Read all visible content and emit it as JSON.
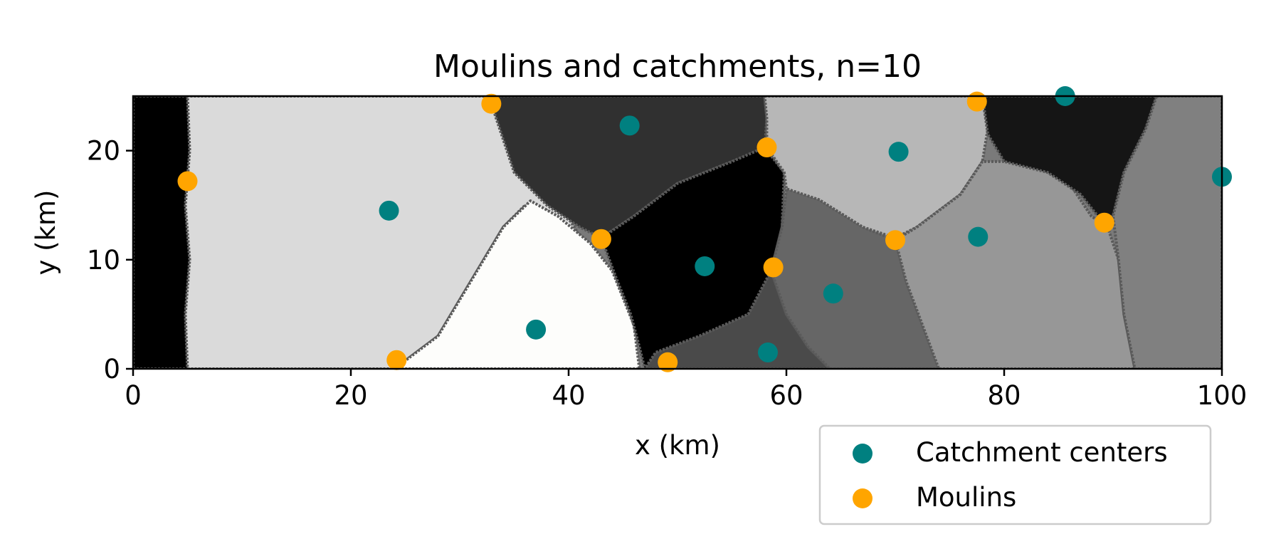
{
  "chart_data": {
    "type": "scatter",
    "title": "Moulins and catchments, n=10",
    "xlabel": "x (km)",
    "ylabel": "y (km)",
    "xlim": [
      0,
      100
    ],
    "ylim": [
      0,
      25
    ],
    "xticks": [
      0,
      20,
      40,
      60,
      80,
      100
    ],
    "yticks": [
      0,
      10,
      20
    ],
    "xtick_labels": [
      "0",
      "20",
      "40",
      "60",
      "80",
      "100"
    ],
    "ytick_labels": [
      "0",
      "10",
      "20"
    ],
    "grid": false,
    "legend_placement": "below-right",
    "background": "grayscale catchment regions",
    "series": [
      {
        "name": "Catchment centers",
        "color": "#008080",
        "points": [
          {
            "x": 23.5,
            "y": 14.5
          },
          {
            "x": 37.0,
            "y": 3.6
          },
          {
            "x": 45.6,
            "y": 22.3
          },
          {
            "x": 52.5,
            "y": 9.4
          },
          {
            "x": 58.3,
            "y": 1.5
          },
          {
            "x": 64.3,
            "y": 6.9
          },
          {
            "x": 70.3,
            "y": 19.9
          },
          {
            "x": 77.6,
            "y": 12.1
          },
          {
            "x": 85.6,
            "y": 25.0
          },
          {
            "x": 100.0,
            "y": 17.6
          }
        ]
      },
      {
        "name": "Moulins",
        "color": "#ffa500",
        "points": [
          {
            "x": 5.0,
            "y": 17.2
          },
          {
            "x": 24.2,
            "y": 0.8
          },
          {
            "x": 32.9,
            "y": 24.3
          },
          {
            "x": 43.0,
            "y": 11.9
          },
          {
            "x": 49.1,
            "y": 0.6
          },
          {
            "x": 58.2,
            "y": 20.3
          },
          {
            "x": 58.8,
            "y": 9.3
          },
          {
            "x": 70.0,
            "y": 11.8
          },
          {
            "x": 77.5,
            "y": 24.5
          },
          {
            "x": 89.2,
            "y": 13.4
          }
        ]
      }
    ],
    "regions": [
      {
        "shade": "#000000",
        "polygon": [
          [
            0,
            0
          ],
          [
            5,
            0
          ],
          [
            4.8,
            5
          ],
          [
            5.2,
            10
          ],
          [
            4.8,
            15
          ],
          [
            5.2,
            20
          ],
          [
            5,
            25
          ],
          [
            0,
            25
          ]
        ]
      },
      {
        "shade": "#dadada",
        "polygon": [
          [
            5,
            0
          ],
          [
            24,
            0
          ],
          [
            28,
            3
          ],
          [
            31,
            8
          ],
          [
            34,
            13
          ],
          [
            36,
            15
          ],
          [
            38,
            14.5
          ],
          [
            41,
            11
          ],
          [
            43,
            9
          ],
          [
            33,
            25
          ],
          [
            5,
            25
          ],
          [
            5.2,
            20
          ],
          [
            4.8,
            15
          ],
          [
            5.2,
            10
          ],
          [
            4.8,
            5
          ]
        ]
      },
      {
        "shade": "#fdfdfb",
        "polygon": [
          [
            24,
            0
          ],
          [
            46.5,
            0
          ],
          [
            46,
            4
          ],
          [
            44,
            9
          ],
          [
            42,
            11.5
          ],
          [
            39,
            14
          ],
          [
            36.5,
            15.4
          ],
          [
            34,
            13
          ],
          [
            31,
            8
          ],
          [
            28,
            3
          ]
        ]
      },
      {
        "shade": "#303030",
        "polygon": [
          [
            33,
            25
          ],
          [
            58,
            25
          ],
          [
            58.2,
            23
          ],
          [
            58,
            20
          ],
          [
            55,
            19
          ],
          [
            50,
            17
          ],
          [
            46,
            14
          ],
          [
            43,
            12
          ],
          [
            41,
            13
          ],
          [
            38,
            15
          ],
          [
            35,
            18
          ],
          [
            34,
            21
          ],
          [
            33,
            24
          ]
        ]
      },
      {
        "shade": "#000000",
        "polygon": [
          [
            43,
            12
          ],
          [
            46,
            14
          ],
          [
            50,
            17
          ],
          [
            55,
            19
          ],
          [
            58,
            20.3
          ],
          [
            59.8,
            18
          ],
          [
            59.6,
            13
          ],
          [
            58.6,
            9
          ],
          [
            56.5,
            5
          ],
          [
            52,
            3
          ],
          [
            48,
            1.5
          ],
          [
            47,
            0
          ],
          [
            46.5,
            2
          ],
          [
            45.7,
            5
          ],
          [
            44.3,
            8.5
          ]
        ]
      },
      {
        "shade": "#4a4a4a",
        "polygon": [
          [
            47,
            0
          ],
          [
            64,
            0
          ],
          [
            62,
            2
          ],
          [
            60,
            5
          ],
          [
            58.6,
            9
          ],
          [
            56.5,
            5
          ],
          [
            52,
            3
          ],
          [
            48,
            1.5
          ]
        ]
      },
      {
        "shade": "#b7b7b7",
        "polygon": [
          [
            58,
            25
          ],
          [
            78,
            25
          ],
          [
            78.5,
            22
          ],
          [
            78,
            19
          ],
          [
            76,
            16
          ],
          [
            72,
            13
          ],
          [
            70,
            12
          ],
          [
            67,
            13
          ],
          [
            63,
            15.5
          ],
          [
            60,
            16.5
          ],
          [
            59.8,
            18
          ],
          [
            58.2,
            20.3
          ],
          [
            58.2,
            23
          ]
        ]
      },
      {
        "shade": "#666666",
        "polygon": [
          [
            59.6,
            13
          ],
          [
            60,
            16.5
          ],
          [
            63,
            15.5
          ],
          [
            67,
            13
          ],
          [
            70,
            11.8
          ],
          [
            71,
            8
          ],
          [
            72.5,
            4
          ],
          [
            74,
            0
          ],
          [
            64,
            0
          ],
          [
            62,
            2
          ],
          [
            60,
            5
          ],
          [
            58.6,
            9
          ]
        ]
      },
      {
        "shade": "#979797",
        "polygon": [
          [
            70,
            11.8
          ],
          [
            72,
            13
          ],
          [
            76,
            16
          ],
          [
            78,
            19
          ],
          [
            82,
            19
          ],
          [
            86,
            17
          ],
          [
            88,
            14
          ],
          [
            89.5,
            13
          ],
          [
            90.5,
            10
          ],
          [
            91,
            5
          ],
          [
            92,
            0
          ],
          [
            74,
            0
          ],
          [
            72.5,
            4
          ],
          [
            71,
            8
          ]
        ]
      },
      {
        "shade": "#151515",
        "polygon": [
          [
            78,
            25
          ],
          [
            94,
            25
          ],
          [
            93,
            22
          ],
          [
            91,
            18
          ],
          [
            90,
            14
          ],
          [
            89,
            13.5
          ],
          [
            87,
            16
          ],
          [
            84,
            18
          ],
          [
            80,
            19
          ],
          [
            78.5,
            21.5
          ]
        ]
      },
      {
        "shade": "#808080",
        "polygon": [
          [
            94,
            25
          ],
          [
            100,
            25
          ],
          [
            100,
            0
          ],
          [
            92,
            0
          ],
          [
            91,
            5
          ],
          [
            90.5,
            10
          ],
          [
            90,
            14
          ],
          [
            91,
            18
          ],
          [
            93,
            22
          ]
        ]
      }
    ]
  }
}
